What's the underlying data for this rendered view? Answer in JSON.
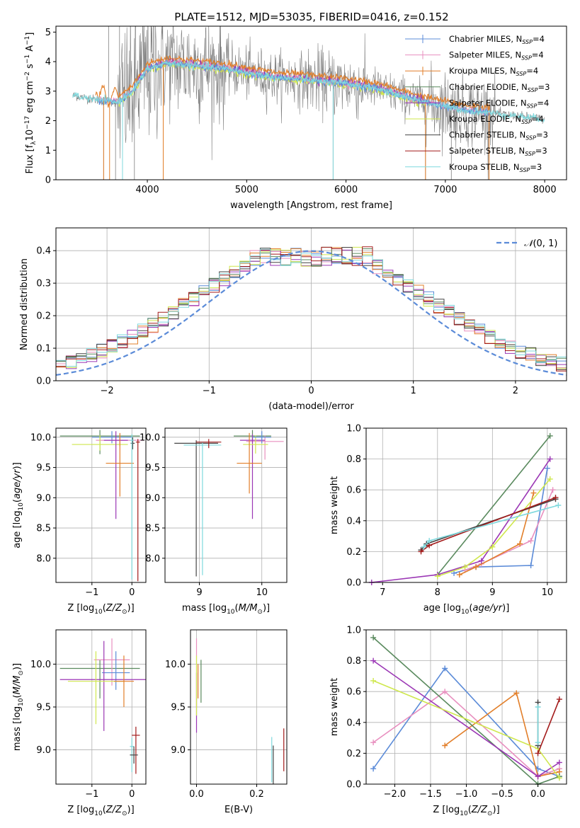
{
  "title": "PLATE=1512, MJD=53035, FIBERID=0416, z=0.152",
  "colors": {
    "chabrier_miles": "#5b8bd8",
    "salpeter_miles": "#e88fbf",
    "kroupa_miles": "#e27f2a",
    "chabrier_elodie": "#5a8a5e",
    "salpeter_elodie": "#9b37b5",
    "kroupa_elodie": "#cfe74d",
    "chabrier_stelib": "#444444",
    "salpeter_stelib": "#a31b1b",
    "kroupa_stelib": "#7fd9dd",
    "data": "#808080",
    "normal": "#5b8bd8"
  },
  "chart_data": [
    {
      "id": "spectrum",
      "type": "line",
      "xlabel": "wavelength [Angstrom, rest frame]",
      "ylabel": "Flux [f_λ10^-17 erg cm^-2 s^-1 A^-1]",
      "xlim": [
        3080,
        8220
      ],
      "ylim": [
        0,
        5.2
      ],
      "xticks": [
        4000,
        5000,
        6000,
        7000,
        8000
      ],
      "yticks": [
        0,
        1,
        2,
        3,
        4,
        5
      ],
      "legend": {
        "placement": "right",
        "entries": [
          {
            "label": "Chabrier MILES, N_SSP=4",
            "text": "Chabrier MILES, N",
            "sub": "SSP",
            "suffix": "=4",
            "color": "#5b8bd8"
          },
          {
            "label": "Salpeter MILES, N_SSP=4",
            "text": "Salpeter MILES, N",
            "sub": "SSP",
            "suffix": "=4",
            "color": "#e88fbf"
          },
          {
            "label": "Kroupa MILES, N_SSP=4",
            "text": "Kroupa MILES, N",
            "sub": "SSP",
            "suffix": "=4",
            "color": "#e27f2a"
          },
          {
            "label": "Chabrier ELODIE, N_SSP=3",
            "text": "Chabrier ELODIE, N",
            "sub": "SSP",
            "suffix": "=3",
            "color": "#5a8a5e"
          },
          {
            "label": "Salpeter ELODIE, N_SSP=4",
            "text": "Salpeter ELODIE, N",
            "sub": "SSP",
            "suffix": "=4",
            "color": "#9b37b5"
          },
          {
            "label": "Kroupa ELODIE, N_SSP=4",
            "text": "Kroupa ELODIE, N",
            "sub": "SSP",
            "suffix": "=4",
            "color": "#cfe74d"
          },
          {
            "label": "Chabrier STELIB, N_SSP=3",
            "text": "Chabrier STELIB, N",
            "sub": "SSP",
            "suffix": "=3",
            "color": "#444444"
          },
          {
            "label": "Salpeter STELIB, N_SSP=3",
            "text": "Salpeter STELIB, N",
            "sub": "SSP",
            "suffix": "=3",
            "color": "#a31b1b"
          },
          {
            "label": "Kroupa STELIB, N_SSP=3",
            "text": "Kroupa STELIB, N",
            "sub": "SSP",
            "suffix": "=3",
            "color": "#7fd9dd"
          }
        ]
      },
      "continuum": [
        [
          3250,
          2.85
        ],
        [
          3500,
          2.7
        ],
        [
          3700,
          2.62
        ],
        [
          3850,
          3.0
        ],
        [
          4000,
          3.75
        ],
        [
          4200,
          3.95
        ],
        [
          4500,
          3.85
        ],
        [
          4800,
          3.75
        ],
        [
          5000,
          3.62
        ],
        [
          5300,
          3.45
        ],
        [
          5600,
          3.38
        ],
        [
          6000,
          3.25
        ],
        [
          6300,
          3.1
        ],
        [
          6600,
          2.8
        ],
        [
          6900,
          2.55
        ],
        [
          7200,
          2.35
        ],
        [
          7500,
          2.25
        ],
        [
          7750,
          2.15
        ],
        [
          8000,
          2.05
        ]
      ],
      "data_spike_lines": [
        [
          3560,
          0.0
        ],
        [
          3610,
          5.2
        ],
        [
          3680,
          0.0
        ],
        [
          3720,
          5.2
        ],
        [
          3870,
          0.0
        ],
        [
          4160,
          0.0
        ],
        [
          5870,
          0.0
        ],
        [
          6800,
          0.0
        ],
        [
          7440,
          0.0
        ],
        [
          7060,
          0.0
        ]
      ]
    },
    {
      "id": "residuals",
      "type": "step",
      "xlabel": "(data-model)/error",
      "ylabel": "Normed distribution",
      "xlim": [
        -2.5,
        2.5
      ],
      "ylim": [
        0,
        0.47
      ],
      "xticks": [
        -2,
        -1,
        0,
        1,
        2
      ],
      "yticks": [
        0.0,
        0.1,
        0.2,
        0.3,
        0.4
      ],
      "grid": true,
      "legend": {
        "placement": "top-right",
        "label": "N(0,1)"
      },
      "bin_width": 0.1
    },
    {
      "id": "age_vs_Z",
      "type": "errorbar",
      "xlabel": "Z [log10(Z/Z⊙)]",
      "ylabel": "age [log10(age/yr)]",
      "xlim": [
        -1.9,
        0.35
      ],
      "ylim": [
        7.6,
        10.15
      ],
      "xticks": [
        -1,
        0
      ],
      "yticks": [
        8.0,
        8.5,
        9.0,
        9.5,
        10.0
      ],
      "grid": true,
      "points": [
        {
          "color": "#5a8a5e",
          "x": -0.8,
          "xerr": 1.0,
          "y": 10.02,
          "yerr": [
            0.3,
            0.1
          ]
        },
        {
          "color": "#5b8bd8",
          "x": -0.5,
          "xerr": 0.5,
          "y": 10.0,
          "yerr": [
            0.1,
            0.1
          ]
        },
        {
          "color": "#e88fbf",
          "x": -0.3,
          "xerr": 0.6,
          "y": 9.95,
          "yerr": [
            0.1,
            0.1
          ]
        },
        {
          "color": "#cfe74d",
          "x": -0.8,
          "xerr": 0.7,
          "y": 9.88,
          "yerr": [
            0.1,
            0.15
          ]
        },
        {
          "color": "#9b37b5",
          "x": -0.4,
          "xerr": 0.3,
          "y": 9.95,
          "yerr": [
            1.3,
            0.15
          ]
        },
        {
          "color": "#e27f2a",
          "x": -0.3,
          "xerr": 0.35,
          "y": 9.57,
          "yerr": [
            0.55,
            0.5
          ]
        },
        {
          "color": "#444444",
          "x": 0.02,
          "xerr": 0.05,
          "y": 9.9,
          "yerr": [
            0.1,
            0.1
          ]
        },
        {
          "color": "#7fd9dd",
          "x": 0.0,
          "xerr": 0.05,
          "y": 9.95,
          "yerr": [
            2.3,
            0.1
          ]
        },
        {
          "color": "#a31b1b",
          "x": 0.15,
          "xerr": 0.05,
          "y": 9.92,
          "yerr": [
            2.3,
            0.05
          ]
        }
      ]
    },
    {
      "id": "age_vs_mass",
      "type": "errorbar",
      "xlabel": "mass [log10(M/M⊙)]",
      "ylabel": "",
      "xlim": [
        8.45,
        10.4
      ],
      "ylim": [
        7.6,
        10.15
      ],
      "xticks": [
        9,
        10
      ],
      "yticks": [
        8.0,
        8.5,
        9.0,
        9.5,
        10.0
      ],
      "grid": true,
      "points": [
        {
          "color": "#5a8a5e",
          "x": 9.85,
          "xerr": 0.3,
          "y": 10.02,
          "yerr": [
            0.1,
            0.1
          ]
        },
        {
          "color": "#e88fbf",
          "x": 10.05,
          "xerr": 0.3,
          "y": 9.93,
          "yerr": [
            0.3,
            0.1
          ]
        },
        {
          "color": "#9b37b5",
          "x": 9.85,
          "xerr": 0.2,
          "y": 9.95,
          "yerr": [
            1.3,
            0.1
          ]
        },
        {
          "color": "#cfe74d",
          "x": 9.9,
          "xerr": 0.2,
          "y": 9.88,
          "yerr": [
            0.15,
            0.15
          ]
        },
        {
          "color": "#e27f2a",
          "x": 9.8,
          "xerr": 0.2,
          "y": 9.57,
          "yerr": [
            0.5,
            0.5
          ]
        },
        {
          "color": "#444444",
          "x": 8.95,
          "xerr": 0.35,
          "y": 9.9,
          "yerr": [
            2.2,
            0.05
          ]
        },
        {
          "color": "#7fd9dd",
          "x": 9.05,
          "xerr": 0.3,
          "y": 9.87,
          "yerr": [
            2.15,
            0.05
          ]
        },
        {
          "color": "#a31b1b",
          "x": 9.15,
          "xerr": 0.2,
          "y": 9.92,
          "yerr": [
            0.1,
            0.05
          ]
        },
        {
          "color": "#5b8bd8",
          "x": 10.0,
          "xerr": 0.15,
          "y": 10.0,
          "yerr": [
            0.1,
            0.1
          ]
        }
      ]
    },
    {
      "id": "massweight_vs_age",
      "type": "line",
      "xlabel": "age [log10(age/yr)]",
      "ylabel": "mass weight",
      "xlim": [
        6.7,
        10.35
      ],
      "ylim": [
        0.0,
        1.0
      ],
      "xticks": [
        7,
        8,
        9,
        10
      ],
      "yticks": [
        0.0,
        0.2,
        0.4,
        0.6,
        0.8,
        1.0
      ],
      "grid": true,
      "series": [
        {
          "color": "#5b8bd8",
          "x": [
            8.3,
            8.7,
            9.7,
            10.0
          ],
          "y": [
            0.06,
            0.1,
            0.11,
            0.74
          ]
        },
        {
          "color": "#e88fbf",
          "x": [
            8.5,
            8.8,
            9.7,
            10.1
          ],
          "y": [
            0.08,
            0.12,
            0.27,
            0.6
          ]
        },
        {
          "color": "#e27f2a",
          "x": [
            8.4,
            8.7,
            9.5,
            9.75
          ],
          "y": [
            0.05,
            0.1,
            0.25,
            0.58
          ]
        },
        {
          "color": "#5a8a5e",
          "x": [
            8.0,
            10.05
          ],
          "y": [
            0.05,
            0.95
          ]
        },
        {
          "color": "#9b37b5",
          "x": [
            6.8,
            8.0,
            8.8,
            10.05
          ],
          "y": [
            0.0,
            0.05,
            0.14,
            0.8
          ]
        },
        {
          "color": "#cfe74d",
          "x": [
            8.0,
            8.5,
            9.0,
            10.05
          ],
          "y": [
            0.04,
            0.1,
            0.23,
            0.67
          ]
        },
        {
          "color": "#444444",
          "x": [
            7.7,
            7.8,
            10.15
          ],
          "y": [
            0.21,
            0.25,
            0.54
          ]
        },
        {
          "color": "#a31b1b",
          "x": [
            7.7,
            7.85,
            10.15
          ],
          "y": [
            0.2,
            0.24,
            0.55
          ]
        },
        {
          "color": "#7fd9dd",
          "x": [
            7.75,
            7.85,
            10.2
          ],
          "y": [
            0.23,
            0.27,
            0.5
          ]
        }
      ]
    },
    {
      "id": "mass_vs_Z",
      "type": "errorbar",
      "xlabel": "Z [log10(Z/Z⊙)]",
      "ylabel": "mass [log10(M/M⊙)]",
      "xlim": [
        -1.9,
        0.35
      ],
      "ylim": [
        8.6,
        10.4
      ],
      "xticks": [
        -1,
        0
      ],
      "yticks": [
        9.0,
        9.5,
        10.0
      ],
      "grid": true,
      "points": [
        {
          "color": "#5a8a5e",
          "x": -0.8,
          "xerr": 1.0,
          "y": 9.95,
          "yerr": [
            0.35,
            0.1
          ]
        },
        {
          "color": "#e88fbf",
          "x": -0.5,
          "xerr": 0.45,
          "y": 10.05,
          "yerr": [
            0.3,
            0.25
          ]
        },
        {
          "color": "#5b8bd8",
          "x": -0.4,
          "xerr": 0.35,
          "y": 9.9,
          "yerr": [
            0.2,
            0.25
          ]
        },
        {
          "color": "#9b37b5",
          "x": -0.7,
          "xerr": 1.1,
          "y": 9.82,
          "yerr": [
            0.6,
            0.45
          ]
        },
        {
          "color": "#cfe74d",
          "x": -0.9,
          "xerr": 0.7,
          "y": 9.8,
          "yerr": [
            0.5,
            0.35
          ]
        },
        {
          "color": "#e27f2a",
          "x": -0.2,
          "xerr": 0.25,
          "y": 9.8,
          "yerr": [
            0.3,
            0.3
          ]
        },
        {
          "color": "#a31b1b",
          "x": 0.1,
          "xerr": 0.1,
          "y": 9.17,
          "yerr": [
            0.45,
            0.1
          ]
        },
        {
          "color": "#7fd9dd",
          "x": 0.0,
          "xerr": 0.05,
          "y": 9.04,
          "yerr": [
            0.3,
            0.1
          ]
        },
        {
          "color": "#444444",
          "x": 0.05,
          "xerr": 0.1,
          "y": 8.94,
          "yerr": [
            0.1,
            0.1
          ]
        }
      ]
    },
    {
      "id": "mass_vs_EBV",
      "type": "errorbar",
      "xlabel": "E(B-V)",
      "ylabel": "",
      "xlim": [
        -0.02,
        0.3
      ],
      "ylim": [
        8.6,
        10.4
      ],
      "xticks": [
        0.0,
        0.2
      ],
      "yticks": [
        9.0,
        9.5,
        10.0
      ],
      "grid": true,
      "points": [
        {
          "color": "#e88fbf",
          "x": 0.0,
          "xerr": 0,
          "y": 10.05,
          "yerr": [
            0.55,
            0.25
          ]
        },
        {
          "color": "#9b37b5",
          "x": 0.0,
          "xerr": 0,
          "y": 9.8,
          "yerr": [
            0.6,
            0.1
          ]
        },
        {
          "color": "#cfe74d",
          "x": 0.0,
          "xerr": 0,
          "y": 9.8,
          "yerr": [
            0.4,
            0.3
          ]
        },
        {
          "color": "#e27f2a",
          "x": 0.005,
          "xerr": 0,
          "y": 9.8,
          "yerr": [
            0.2,
            0.2
          ]
        },
        {
          "color": "#5a8a5e",
          "x": 0.015,
          "xerr": 0,
          "y": 9.85,
          "yerr": [
            0.3,
            0.2
          ]
        },
        {
          "color": "#7fd9dd",
          "x": 0.25,
          "xerr": 0,
          "y": 9.0,
          "yerr": [
            0.38,
            0.15
          ]
        },
        {
          "color": "#444444",
          "x": 0.255,
          "xerr": 0,
          "y": 8.9,
          "yerr": [
            0.3,
            0.15
          ]
        },
        {
          "color": "#a31b1b",
          "x": 0.29,
          "xerr": 0,
          "y": 9.0,
          "yerr": [
            0.25,
            0.25
          ]
        }
      ]
    },
    {
      "id": "massweight_vs_Z",
      "type": "line",
      "xlabel": "Z [log10(Z/Z⊙)]",
      "ylabel": "mass weight",
      "xlim": [
        -2.4,
        0.4
      ],
      "ylim": [
        0.0,
        1.0
      ],
      "xticks": [
        -2.0,
        -1.5,
        -1.0,
        -0.5,
        0.0
      ],
      "yticks": [
        0.0,
        0.2,
        0.4,
        0.6,
        0.8,
        1.0
      ],
      "grid": true,
      "series": [
        {
          "color": "#5b8bd8",
          "x": [
            -2.3,
            -1.3,
            0.0,
            0.3
          ],
          "y": [
            0.1,
            0.75,
            0.1,
            0.05
          ]
        },
        {
          "color": "#e88fbf",
          "x": [
            -2.3,
            -1.3,
            0.0,
            0.3
          ],
          "y": [
            0.27,
            0.6,
            0.05,
            0.1
          ]
        },
        {
          "color": "#e27f2a",
          "x": [
            -1.3,
            -0.3,
            0.0,
            0.3
          ],
          "y": [
            0.25,
            0.59,
            0.05,
            0.08
          ]
        },
        {
          "color": "#5a8a5e",
          "x": [
            -2.3,
            0.0,
            0.3
          ],
          "y": [
            0.95,
            0.0,
            0.05
          ]
        },
        {
          "color": "#9b37b5",
          "x": [
            -2.3,
            0.0,
            0.3
          ],
          "y": [
            0.8,
            0.05,
            0.14
          ]
        },
        {
          "color": "#cfe74d",
          "x": [
            -2.3,
            0.0,
            0.3
          ],
          "y": [
            0.67,
            0.23,
            0.04
          ]
        },
        {
          "color": "#444444",
          "x": [
            0.0,
            0.0
          ],
          "y": [
            0.53,
            0.25
          ]
        },
        {
          "color": "#a31b1b",
          "x": [
            0.3,
            0.0
          ],
          "y": [
            0.55,
            0.2
          ]
        },
        {
          "color": "#7fd9dd",
          "x": [
            0.0,
            0.0
          ],
          "y": [
            0.5,
            0.27
          ]
        }
      ]
    }
  ]
}
